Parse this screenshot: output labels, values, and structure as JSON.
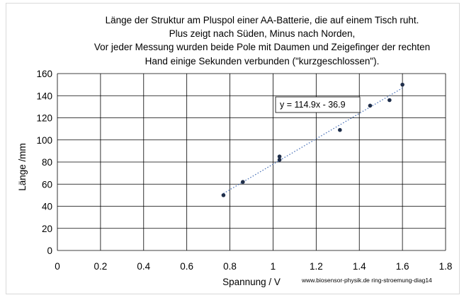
{
  "chart_data": {
    "type": "scatter",
    "title_lines": [
      "Länge der Struktur am Pluspol einer AA-Batterie, die auf einem Tisch ruht.",
      "Plus zeigt nach Süden, Minus nach Norden,",
      "Vor jeder Messung wurden beide Pole mit Daumen und Zeigefinger der rechten",
      "Hand einige Sekunden verbunden (\"kurzgeschlossen\")."
    ],
    "xlabel": "Spannung / V",
    "ylabel": "Länge /mm",
    "xlim": [
      0,
      1.8
    ],
    "ylim": [
      0,
      160
    ],
    "x_ticks": [
      0,
      0.2,
      0.4,
      0.6,
      0.8,
      1,
      1.2,
      1.4,
      1.6,
      1.8
    ],
    "x_tick_labels": [
      "0",
      "0.2",
      "0.4",
      "0.6",
      "0.8",
      "1",
      "1.2",
      "1.4",
      "1.6",
      "1.8"
    ],
    "y_ticks": [
      0,
      20,
      40,
      60,
      80,
      100,
      120,
      140,
      160
    ],
    "y_tick_labels": [
      "0",
      "20",
      "40",
      "60",
      "80",
      "100",
      "120",
      "140",
      "160"
    ],
    "grid": true,
    "points": [
      {
        "x": 0.77,
        "y": 50
      },
      {
        "x": 0.86,
        "y": 62
      },
      {
        "x": 1.03,
        "y": 82
      },
      {
        "x": 1.03,
        "y": 85
      },
      {
        "x": 1.31,
        "y": 109
      },
      {
        "x": 1.45,
        "y": 131
      },
      {
        "x": 1.54,
        "y": 136
      },
      {
        "x": 1.6,
        "y": 150
      }
    ],
    "trendline": {
      "slope": 114.9,
      "intercept": -36.9,
      "x_range": [
        0.77,
        1.6
      ],
      "label": "y = 114.9x - 36.9"
    },
    "watermark": "www.biosensor-physik.de ring-stroemung-diag14",
    "colors": {
      "marker": "#1f2e4a",
      "trendline": "#4a72b8",
      "grid": "#000000"
    }
  }
}
